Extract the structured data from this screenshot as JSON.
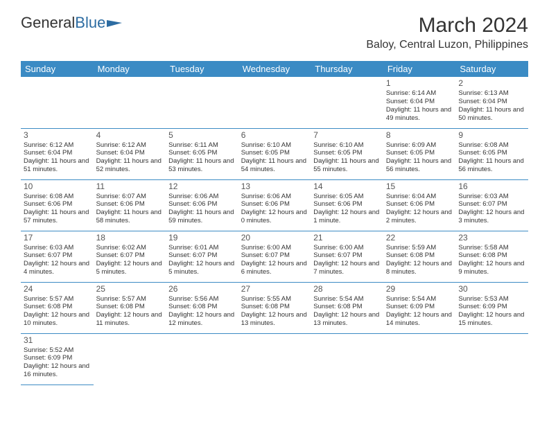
{
  "logo": {
    "text1": "General",
    "text2": "Blue"
  },
  "title": "March 2024",
  "location": "Baloy, Central Luzon, Philippines",
  "colors": {
    "header_bg": "#3b8bc4",
    "header_text": "#ffffff",
    "border": "#3b8bc4",
    "text": "#333333",
    "logo_blue": "#2d6ca2"
  },
  "weekdays": [
    "Sunday",
    "Monday",
    "Tuesday",
    "Wednesday",
    "Thursday",
    "Friday",
    "Saturday"
  ],
  "weeks": [
    [
      null,
      null,
      null,
      null,
      null,
      {
        "num": "1",
        "sunrise": "Sunrise: 6:14 AM",
        "sunset": "Sunset: 6:04 PM",
        "daylight": "Daylight: 11 hours and 49 minutes."
      },
      {
        "num": "2",
        "sunrise": "Sunrise: 6:13 AM",
        "sunset": "Sunset: 6:04 PM",
        "daylight": "Daylight: 11 hours and 50 minutes."
      }
    ],
    [
      {
        "num": "3",
        "sunrise": "Sunrise: 6:12 AM",
        "sunset": "Sunset: 6:04 PM",
        "daylight": "Daylight: 11 hours and 51 minutes."
      },
      {
        "num": "4",
        "sunrise": "Sunrise: 6:12 AM",
        "sunset": "Sunset: 6:04 PM",
        "daylight": "Daylight: 11 hours and 52 minutes."
      },
      {
        "num": "5",
        "sunrise": "Sunrise: 6:11 AM",
        "sunset": "Sunset: 6:05 PM",
        "daylight": "Daylight: 11 hours and 53 minutes."
      },
      {
        "num": "6",
        "sunrise": "Sunrise: 6:10 AM",
        "sunset": "Sunset: 6:05 PM",
        "daylight": "Daylight: 11 hours and 54 minutes."
      },
      {
        "num": "7",
        "sunrise": "Sunrise: 6:10 AM",
        "sunset": "Sunset: 6:05 PM",
        "daylight": "Daylight: 11 hours and 55 minutes."
      },
      {
        "num": "8",
        "sunrise": "Sunrise: 6:09 AM",
        "sunset": "Sunset: 6:05 PM",
        "daylight": "Daylight: 11 hours and 56 minutes."
      },
      {
        "num": "9",
        "sunrise": "Sunrise: 6:08 AM",
        "sunset": "Sunset: 6:05 PM",
        "daylight": "Daylight: 11 hours and 56 minutes."
      }
    ],
    [
      {
        "num": "10",
        "sunrise": "Sunrise: 6:08 AM",
        "sunset": "Sunset: 6:06 PM",
        "daylight": "Daylight: 11 hours and 57 minutes."
      },
      {
        "num": "11",
        "sunrise": "Sunrise: 6:07 AM",
        "sunset": "Sunset: 6:06 PM",
        "daylight": "Daylight: 11 hours and 58 minutes."
      },
      {
        "num": "12",
        "sunrise": "Sunrise: 6:06 AM",
        "sunset": "Sunset: 6:06 PM",
        "daylight": "Daylight: 11 hours and 59 minutes."
      },
      {
        "num": "13",
        "sunrise": "Sunrise: 6:06 AM",
        "sunset": "Sunset: 6:06 PM",
        "daylight": "Daylight: 12 hours and 0 minutes."
      },
      {
        "num": "14",
        "sunrise": "Sunrise: 6:05 AM",
        "sunset": "Sunset: 6:06 PM",
        "daylight": "Daylight: 12 hours and 1 minute."
      },
      {
        "num": "15",
        "sunrise": "Sunrise: 6:04 AM",
        "sunset": "Sunset: 6:06 PM",
        "daylight": "Daylight: 12 hours and 2 minutes."
      },
      {
        "num": "16",
        "sunrise": "Sunrise: 6:03 AM",
        "sunset": "Sunset: 6:07 PM",
        "daylight": "Daylight: 12 hours and 3 minutes."
      }
    ],
    [
      {
        "num": "17",
        "sunrise": "Sunrise: 6:03 AM",
        "sunset": "Sunset: 6:07 PM",
        "daylight": "Daylight: 12 hours and 4 minutes."
      },
      {
        "num": "18",
        "sunrise": "Sunrise: 6:02 AM",
        "sunset": "Sunset: 6:07 PM",
        "daylight": "Daylight: 12 hours and 5 minutes."
      },
      {
        "num": "19",
        "sunrise": "Sunrise: 6:01 AM",
        "sunset": "Sunset: 6:07 PM",
        "daylight": "Daylight: 12 hours and 5 minutes."
      },
      {
        "num": "20",
        "sunrise": "Sunrise: 6:00 AM",
        "sunset": "Sunset: 6:07 PM",
        "daylight": "Daylight: 12 hours and 6 minutes."
      },
      {
        "num": "21",
        "sunrise": "Sunrise: 6:00 AM",
        "sunset": "Sunset: 6:07 PM",
        "daylight": "Daylight: 12 hours and 7 minutes."
      },
      {
        "num": "22",
        "sunrise": "Sunrise: 5:59 AM",
        "sunset": "Sunset: 6:08 PM",
        "daylight": "Daylight: 12 hours and 8 minutes."
      },
      {
        "num": "23",
        "sunrise": "Sunrise: 5:58 AM",
        "sunset": "Sunset: 6:08 PM",
        "daylight": "Daylight: 12 hours and 9 minutes."
      }
    ],
    [
      {
        "num": "24",
        "sunrise": "Sunrise: 5:57 AM",
        "sunset": "Sunset: 6:08 PM",
        "daylight": "Daylight: 12 hours and 10 minutes."
      },
      {
        "num": "25",
        "sunrise": "Sunrise: 5:57 AM",
        "sunset": "Sunset: 6:08 PM",
        "daylight": "Daylight: 12 hours and 11 minutes."
      },
      {
        "num": "26",
        "sunrise": "Sunrise: 5:56 AM",
        "sunset": "Sunset: 6:08 PM",
        "daylight": "Daylight: 12 hours and 12 minutes."
      },
      {
        "num": "27",
        "sunrise": "Sunrise: 5:55 AM",
        "sunset": "Sunset: 6:08 PM",
        "daylight": "Daylight: 12 hours and 13 minutes."
      },
      {
        "num": "28",
        "sunrise": "Sunrise: 5:54 AM",
        "sunset": "Sunset: 6:08 PM",
        "daylight": "Daylight: 12 hours and 13 minutes."
      },
      {
        "num": "29",
        "sunrise": "Sunrise: 5:54 AM",
        "sunset": "Sunset: 6:09 PM",
        "daylight": "Daylight: 12 hours and 14 minutes."
      },
      {
        "num": "30",
        "sunrise": "Sunrise: 5:53 AM",
        "sunset": "Sunset: 6:09 PM",
        "daylight": "Daylight: 12 hours and 15 minutes."
      }
    ],
    [
      {
        "num": "31",
        "sunrise": "Sunrise: 5:52 AM",
        "sunset": "Sunset: 6:09 PM",
        "daylight": "Daylight: 12 hours and 16 minutes."
      },
      null,
      null,
      null,
      null,
      null,
      null
    ]
  ]
}
